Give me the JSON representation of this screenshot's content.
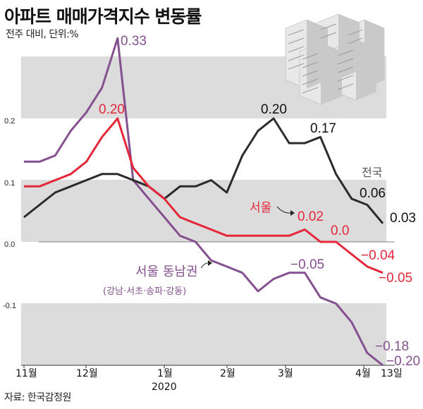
{
  "header": {
    "title": "아파트 매매가격지수 변동률",
    "subtitle": "전주 대비, 단위:%",
    "source": "자료: 한국감정원"
  },
  "colors": {
    "national": "#2b2b2b",
    "seoul": "#e4283a",
    "southeast": "#85508f",
    "band": "#dcdcdc"
  },
  "chart_data": {
    "type": "line",
    "ylim": [
      -0.18,
      0.3
    ],
    "yticks": [
      "0.2",
      "0.1",
      "0.0",
      "-0.1"
    ],
    "x_ticks": [
      "11월",
      "12월",
      "1월",
      "2월",
      "3월",
      "4월",
      "13일"
    ],
    "x_year_label": "2020",
    "series": [
      {
        "name": "전국",
        "values": [
          0.04,
          0.06,
          0.08,
          0.09,
          0.1,
          0.11,
          0.11,
          0.1,
          0.09,
          0.07,
          0.09,
          0.09,
          0.1,
          0.08,
          0.14,
          0.18,
          0.2,
          0.16,
          0.16,
          0.17,
          0.11,
          0.07,
          0.06,
          0.03
        ]
      },
      {
        "name": "서울",
        "values": [
          0.09,
          0.09,
          0.1,
          0.11,
          0.13,
          0.17,
          0.2,
          0.12,
          0.09,
          0.07,
          0.04,
          0.03,
          0.02,
          0.01,
          0.01,
          0.01,
          0.01,
          0.01,
          0.02,
          0.0,
          0.0,
          -0.02,
          -0.04,
          -0.05
        ]
      },
      {
        "name": "서울 동남권",
        "values": [
          0.13,
          0.13,
          0.14,
          0.18,
          0.21,
          0.25,
          0.33,
          0.1,
          0.07,
          0.04,
          0.01,
          0.0,
          -0.03,
          -0.04,
          -0.05,
          -0.08,
          -0.06,
          -0.05,
          -0.05,
          -0.09,
          -0.1,
          -0.13,
          -0.18,
          -0.2
        ]
      }
    ],
    "value_labels": {
      "seoul_peak": "0.20",
      "southeast_peak": "0.33",
      "national_peak": "0.20",
      "national_017": "0.17",
      "national_006": "0.06",
      "national_end": "0.03",
      "seoul_002": "0.02",
      "seoul_00": "0.0",
      "seoul_m004": "−0.04",
      "seoul_end": "−0.05",
      "southeast_m005": "−0.05",
      "southeast_m018": "−0.18",
      "southeast_end": "−0.20"
    },
    "annotations": {
      "national_name": "전국",
      "seoul_name": "서울",
      "southeast_name": "서울 동남권",
      "southeast_sub": "(강남·서초·송파·강동)"
    }
  }
}
